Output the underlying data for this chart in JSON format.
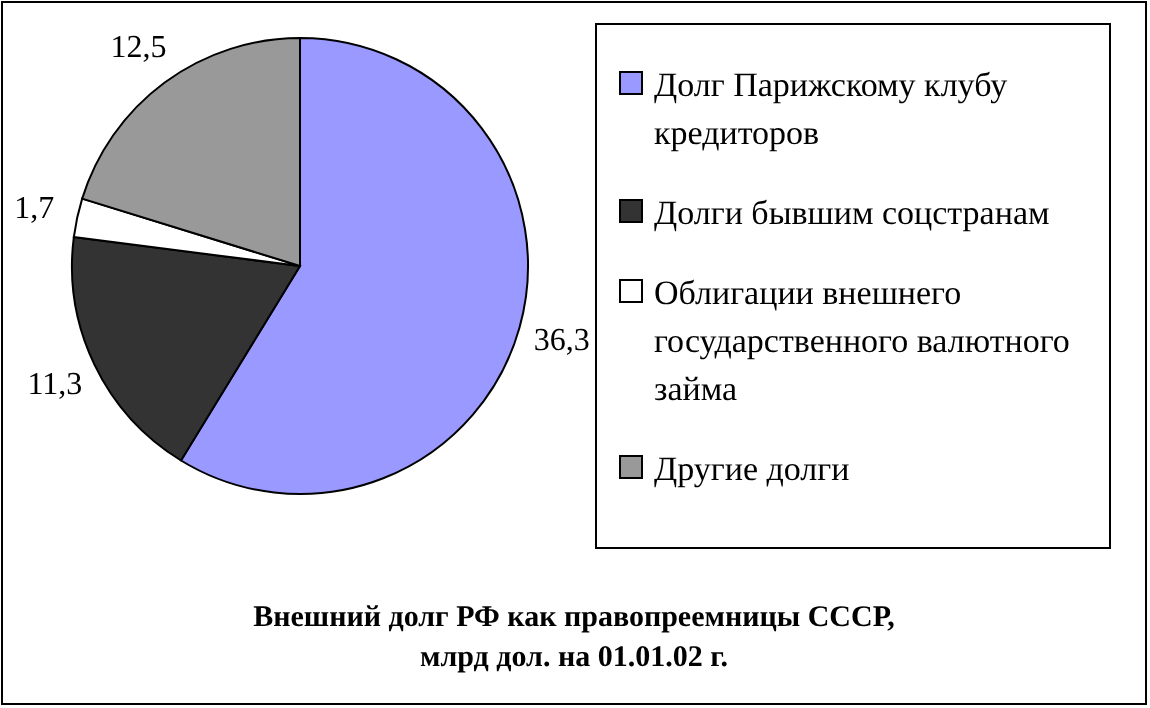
{
  "chart_data": {
    "type": "pie",
    "title": "Внешний долг РФ как правопреемницы СССР, млрд дол. на 01.01.02 г.",
    "categories": [
      "Долг Парижскому клубу кредиторов",
      "Долги бывшим соцстранам",
      "Облигации внешнего государственного валютного займа",
      "Другие долги"
    ],
    "values": [
      36.3,
      11.3,
      1.7,
      12.5
    ],
    "colors": [
      "#9999ff",
      "#333333",
      "#ffffff",
      "#999999"
    ],
    "value_labels": [
      "36,3",
      "11,3",
      "1,7",
      "12,5"
    ],
    "legend": "right"
  }
}
